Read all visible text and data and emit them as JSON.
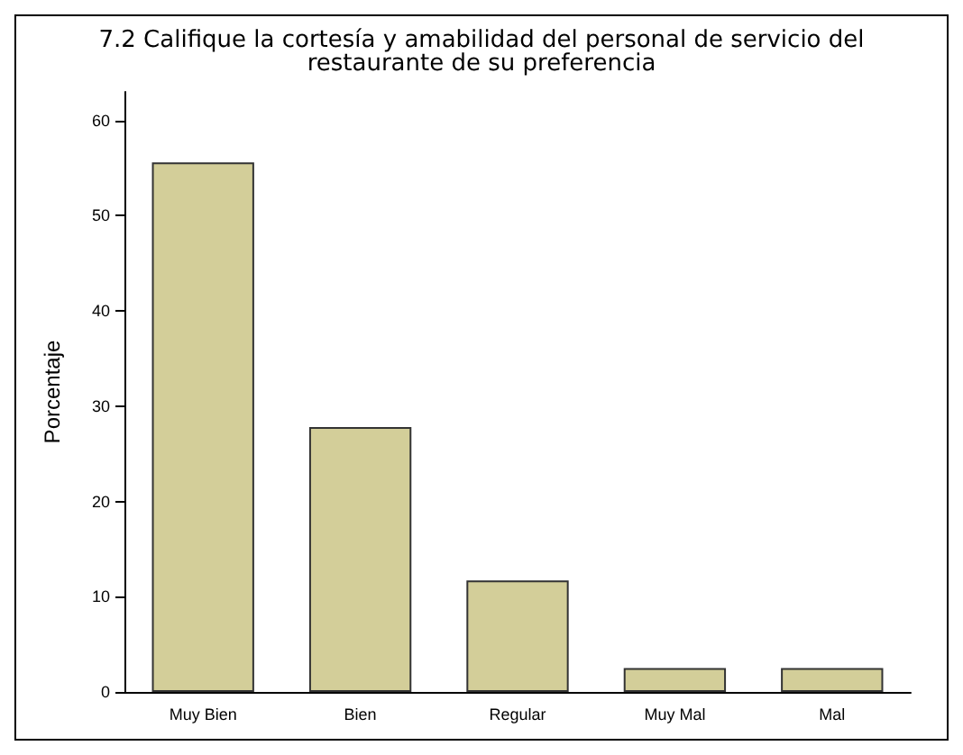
{
  "chart_data": {
    "type": "bar",
    "title": "7.2 Califique la cortesía y amabilidad del personal de servicio del\nrestaurante de su preferencia",
    "ylabel": "Porcentaje",
    "categories": [
      "Muy Bien",
      "Bien",
      "Regular",
      "Muy Mal",
      "Mal"
    ],
    "values": [
      55.6,
      27.8,
      11.7,
      2.5,
      2.5
    ],
    "color": "#d3ce99",
    "ylim": [
      0,
      63
    ],
    "yticks": [
      0,
      10,
      20,
      30,
      40,
      50,
      60
    ],
    "grid": false
  }
}
